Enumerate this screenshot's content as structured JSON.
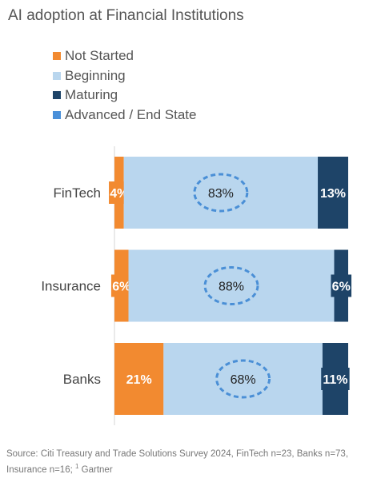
{
  "title": "AI adoption at Financial Institutions",
  "legend": [
    {
      "label": "Not Started",
      "color": "#f28a30"
    },
    {
      "label": "Beginning",
      "color": "#b9d6ee"
    },
    {
      "label": "Maturing",
      "color": "#1e4468"
    },
    {
      "label": "Advanced / End State",
      "color": "#4a90d9"
    }
  ],
  "source": {
    "text": "Source: Citi Treasury and Trade Solutions Survey 2024, FinTech n=23, Banks n=73, Insurance n=16;",
    "superscript": "1",
    "suffix": "Gartner"
  },
  "chart_data": {
    "type": "bar",
    "orientation": "horizontal",
    "stacked": true,
    "categories": [
      "FinTech",
      "Insurance",
      "Banks"
    ],
    "series": [
      {
        "name": "Not Started",
        "values": [
          4,
          6,
          21
        ],
        "labels": [
          "4%",
          "6%",
          "21%"
        ],
        "color": "#f28a30",
        "label_color": "#ffffff"
      },
      {
        "name": "Beginning",
        "values": [
          83,
          88,
          68
        ],
        "labels": [
          "83%",
          "88%",
          "68%"
        ],
        "color": "#b9d6ee",
        "label_color": "#222222",
        "highlighted": true
      },
      {
        "name": "Maturing",
        "values": [
          13,
          6,
          11
        ],
        "labels": [
          "13%",
          "6%",
          "11%"
        ],
        "color": "#1e4468",
        "label_color": "#ffffff"
      }
    ],
    "xlim": [
      0,
      100
    ],
    "grid": false
  }
}
